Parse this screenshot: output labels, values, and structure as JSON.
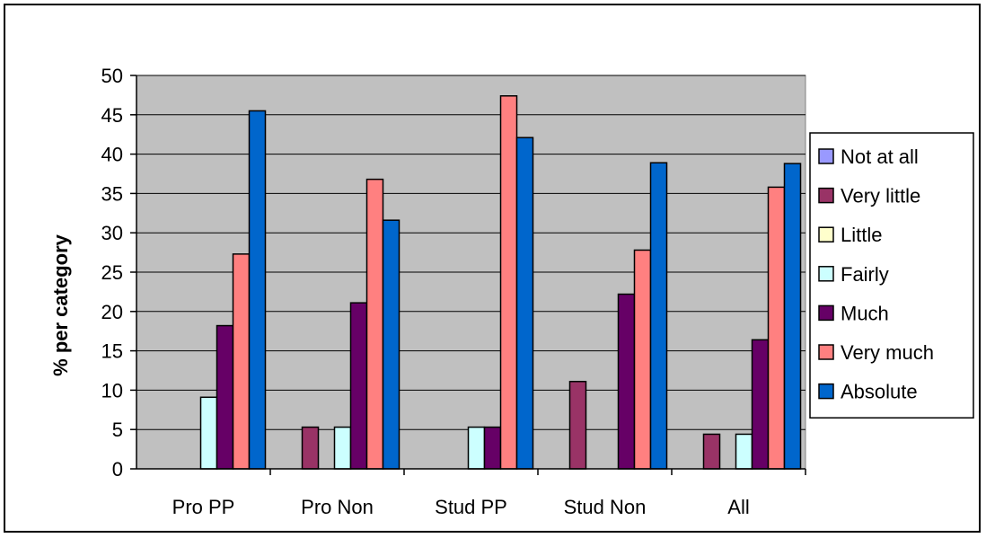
{
  "chart_data": {
    "type": "bar",
    "title": "",
    "xlabel": "",
    "ylabel": "% per category",
    "ylim": [
      0,
      50
    ],
    "yticks": [
      0,
      5,
      10,
      15,
      20,
      25,
      30,
      35,
      40,
      45,
      50
    ],
    "grid": true,
    "legend_position": "right",
    "plot_background": "#c0c0c0",
    "categories": [
      "Pro PP",
      "Pro Non",
      "Stud PP",
      "Stud Non",
      "All"
    ],
    "series": [
      {
        "name": "Not at all",
        "color": "#9999ff",
        "values": [
          0,
          0,
          0,
          0,
          0
        ]
      },
      {
        "name": "Very little",
        "color": "#993366",
        "values": [
          0,
          5.3,
          0,
          11.1,
          4.4
        ]
      },
      {
        "name": "Little",
        "color": "#ffffcc",
        "values": [
          0,
          0,
          0,
          0,
          0
        ]
      },
      {
        "name": "Fairly",
        "color": "#ccffff",
        "values": [
          9.1,
          5.3,
          5.3,
          0,
          4.4
        ]
      },
      {
        "name": "Much",
        "color": "#660066",
        "values": [
          18.2,
          21.1,
          5.3,
          22.2,
          16.4
        ]
      },
      {
        "name": "Very much",
        "color": "#ff8080",
        "values": [
          27.3,
          36.8,
          47.4,
          27.8,
          35.8
        ]
      },
      {
        "name": "Absolute",
        "color": "#0066cc",
        "values": [
          45.5,
          31.6,
          42.1,
          38.9,
          38.8
        ]
      }
    ]
  }
}
